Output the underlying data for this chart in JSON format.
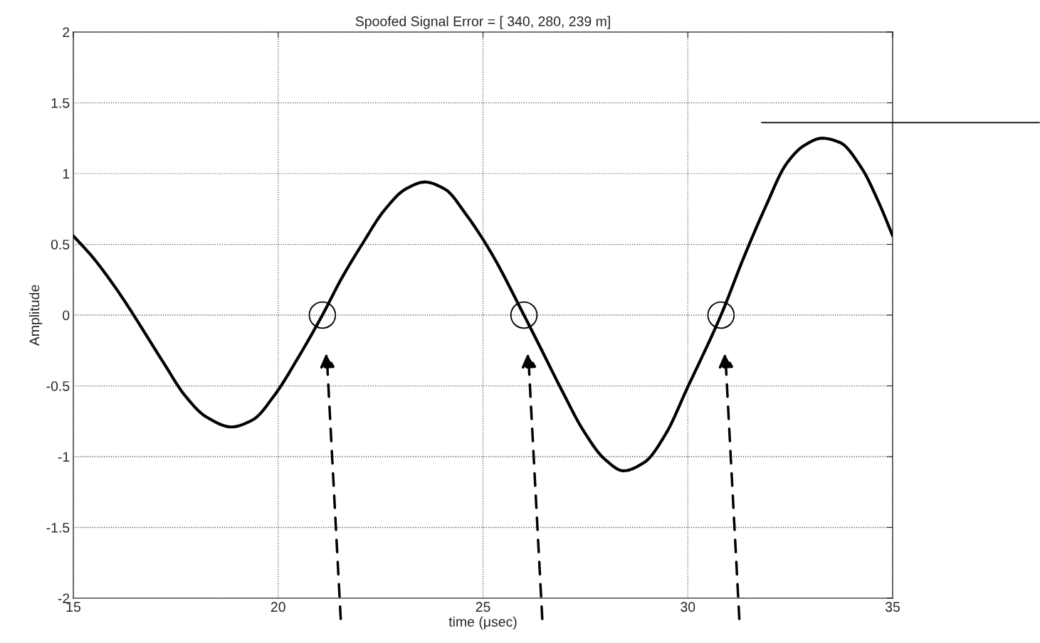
{
  "chart_data": {
    "type": "line",
    "title": "Spoofed Signal Error = [ 340, 280, 239 m]",
    "xlabel": "time (μsec)",
    "ylabel": "Amplitude",
    "xlim": [
      15,
      35
    ],
    "ylim": [
      -2,
      2
    ],
    "xticks": [
      15,
      20,
      25,
      30,
      35
    ],
    "yticks": [
      -2,
      -1.5,
      -1,
      -0.5,
      0,
      0.5,
      1,
      1.5,
      2
    ],
    "grid": true,
    "legend": false,
    "ref_lines": [
      {
        "axis": "y",
        "value": 1.36,
        "color": "#000000",
        "line_style": "solid"
      }
    ],
    "series": [
      {
        "color": "#000000",
        "line_style": "solid",
        "marker": "none",
        "x": [
          15,
          15.47,
          15.99,
          16.34,
          16.69,
          17.21,
          17.73,
          18.25,
          18.86,
          19.38,
          19.9,
          20.51,
          21.08,
          21.55,
          22.07,
          22.59,
          23.11,
          23.58,
          24.07,
          24.59,
          25.2,
          26.0,
          26.42,
          26.94,
          27.46,
          27.98,
          28.43,
          28.94,
          29.46,
          29.98,
          30.81,
          31.37,
          31.89,
          32.41,
          32.85,
          33.28,
          33.71,
          34.24,
          34.67,
          35
        ],
        "values": [
          0.56,
          0.41,
          0.21,
          0.06,
          -0.1,
          -0.34,
          -0.57,
          -0.72,
          -0.79,
          -0.74,
          -0.57,
          -0.29,
          0,
          0.26,
          0.51,
          0.74,
          0.89,
          0.94,
          0.89,
          0.71,
          0.44,
          0,
          -0.24,
          -0.54,
          -0.82,
          -1.02,
          -1.1,
          -1.04,
          -0.84,
          -0.52,
          0,
          0.41,
          0.76,
          1.07,
          1.2,
          1.25,
          1.22,
          1.04,
          0.79,
          0.56
        ]
      },
      {
        "type": "scatter",
        "color": "#000000",
        "marker": "circle",
        "x": [
          21.08,
          26.0,
          30.81
        ],
        "values": [
          0,
          0,
          0
        ]
      }
    ]
  }
}
